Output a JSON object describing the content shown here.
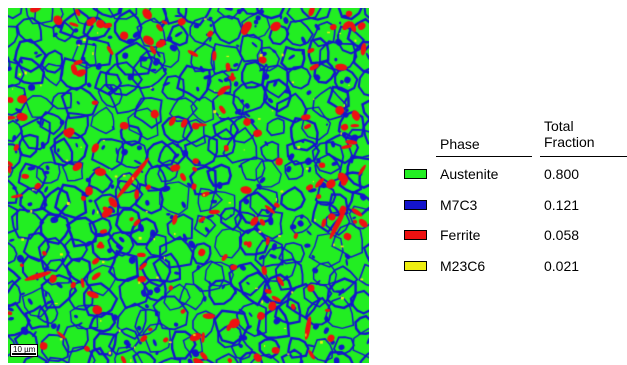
{
  "scale_bar": {
    "label": "10 µm"
  },
  "legend": {
    "header_phase": "Phase",
    "header_total_line1": "Total",
    "header_total_line2": "Fraction",
    "rows": [
      {
        "name": "Austenite",
        "fraction": "0.800",
        "color": "#22ee22"
      },
      {
        "name": "M7C3",
        "fraction": "0.121",
        "color": "#1414cc"
      },
      {
        "name": "Ferrite",
        "fraction": "0.058",
        "color": "#ee1111"
      },
      {
        "name": "M23C6",
        "fraction": "0.021",
        "color": "#eeee11"
      }
    ]
  }
}
